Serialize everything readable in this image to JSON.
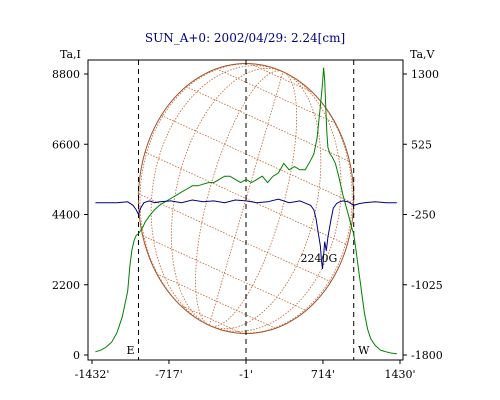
{
  "chart_data": {
    "type": "line",
    "title": "SUN_A+0: 2002/04/29: 2.24[cm]",
    "left_axis_label": "Ta,I",
    "right_axis_label": "Ta,V",
    "x_tick_labels": [
      "-1432'",
      "-717'",
      "-1'",
      "714'",
      "1430'"
    ],
    "x_ticks": [
      -1432,
      -717,
      -1,
      714,
      1430
    ],
    "xlim": [
      -1432,
      1430
    ],
    "left_ticks": [
      0,
      2200,
      4400,
      6600,
      8800
    ],
    "left_tick_labels": [
      "0",
      "2200",
      "4400",
      "6600",
      "8800"
    ],
    "ylim_left": [
      0,
      8800
    ],
    "right_ticks": [
      -1800,
      -1025,
      -250,
      525,
      1300
    ],
    "right_tick_labels": [
      "-1800",
      "-1025",
      "-250",
      "525",
      "1300"
    ],
    "ylim_right": [
      -1800,
      1300
    ],
    "limb_labels": [
      "E",
      "W"
    ],
    "limb_x": [
      -1000,
      1000
    ],
    "dashed_x": [
      -1000,
      -1,
      1000
    ],
    "annotation": {
      "text": "2240G",
      "x": 714,
      "y": 3000
    },
    "grid": false,
    "series": [
      {
        "axis": "left",
        "color": "#008000",
        "x": [
          -1400,
          -1350,
          -1300,
          -1250,
          -1200,
          -1150,
          -1100,
          -1080,
          -1060,
          -1040,
          -1020,
          -1000,
          -980,
          -960,
          -940,
          -900,
          -850,
          -800,
          -750,
          -700,
          -650,
          -600,
          -550,
          -500,
          -450,
          -400,
          -350,
          -300,
          -250,
          -200,
          -150,
          -100,
          -50,
          0,
          50,
          100,
          150,
          200,
          250,
          300,
          350,
          400,
          450,
          500,
          550,
          600,
          630,
          660,
          690,
          710,
          720,
          730,
          740,
          750,
          760,
          780,
          800,
          830,
          860,
          900,
          950,
          980,
          1000,
          1020,
          1040,
          1060,
          1080,
          1100,
          1130,
          1160,
          1200,
          1250,
          1300,
          1350,
          1400
        ],
        "y": [
          100,
          150,
          250,
          400,
          700,
          1200,
          2000,
          2800,
          3300,
          3600,
          3750,
          3800,
          3900,
          4000,
          4150,
          4350,
          4550,
          4700,
          4800,
          4900,
          5000,
          5100,
          5200,
          5300,
          5300,
          5350,
          5400,
          5400,
          5500,
          5600,
          5600,
          5500,
          5400,
          5500,
          5400,
          5500,
          5600,
          5400,
          5600,
          5700,
          6000,
          5800,
          5900,
          5800,
          5800,
          6100,
          6300,
          6800,
          7800,
          8500,
          9000,
          8600,
          7800,
          7000,
          6500,
          6300,
          6200,
          6000,
          5600,
          5000,
          4400,
          4000,
          3800,
          3300,
          2800,
          2300,
          1800,
          1300,
          800,
          500,
          300,
          150,
          100,
          60,
          40
        ]
      },
      {
        "axis": "right",
        "color": "#000080",
        "x": [
          -1400,
          -1300,
          -1200,
          -1100,
          -1050,
          -1020,
          -1000,
          -980,
          -950,
          -900,
          -850,
          -800,
          -700,
          -600,
          -500,
          -400,
          -300,
          -200,
          -100,
          0,
          100,
          200,
          300,
          400,
          500,
          560,
          600,
          630,
          650,
          670,
          690,
          700,
          710,
          720,
          730,
          745,
          760,
          775,
          790,
          810,
          840,
          870,
          900,
          950,
          1000,
          1050,
          1100,
          1200,
          1300,
          1400
        ],
        "y": [
          -120,
          -120,
          -120,
          -110,
          -150,
          -200,
          -250,
          -180,
          -120,
          -100,
          -120,
          -110,
          -100,
          -120,
          -90,
          -110,
          -100,
          -120,
          -90,
          -100,
          -120,
          -110,
          -80,
          -120,
          -100,
          -130,
          -150,
          -200,
          -300,
          -450,
          -600,
          -750,
          -850,
          -700,
          -550,
          -650,
          -500,
          -400,
          -300,
          -180,
          -130,
          -110,
          -100,
          -110,
          -150,
          -130,
          -120,
          -110,
          -120,
          -120
        ]
      }
    ]
  }
}
